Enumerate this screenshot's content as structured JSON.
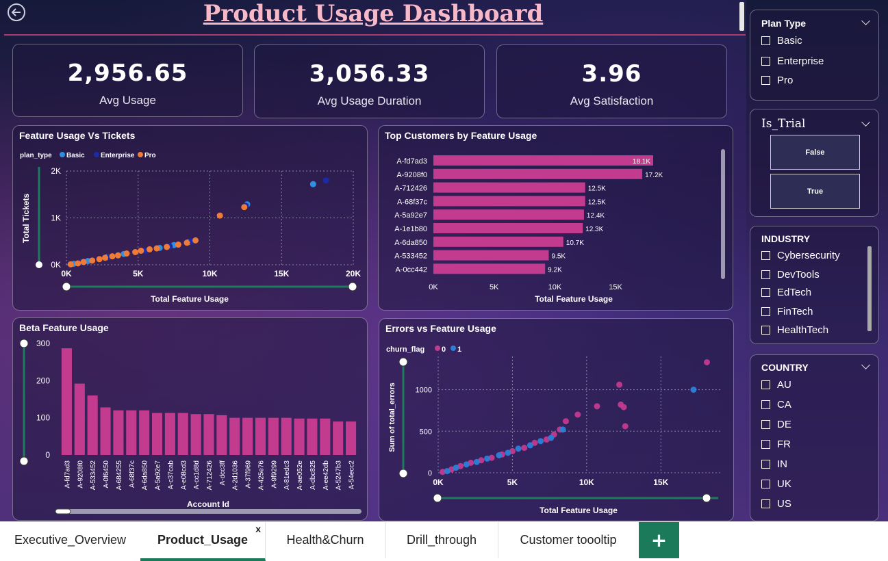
{
  "title": "Product Usage Dashboard",
  "kpis": [
    {
      "value": "2,956.65",
      "label": "Avg Usage"
    },
    {
      "value": "3,056.33",
      "label": "Avg Usage Duration"
    },
    {
      "value": "3.96",
      "label": "Avg Satisfaction"
    }
  ],
  "colors": {
    "basic": "#2d8ee6",
    "enterprise": "#1d2aa8",
    "pro": "#ee7b38",
    "bar": "#c23b8f",
    "churn0": "#c23b8f",
    "churn1": "#2d7fd8"
  },
  "chart_data": [
    {
      "type": "scatter",
      "title": "Feature Usage Vs Tickets",
      "legend_title": "plan_type",
      "legend": [
        "Basic",
        "Enterprise",
        "Pro"
      ],
      "xlabel": "Total Feature Usage",
      "ylabel": "Total Tickets",
      "x_ticks": [
        "0K",
        "5K",
        "10K",
        "15K",
        "20K"
      ],
      "y_ticks": [
        "0K",
        "1K",
        "2K"
      ],
      "xlim": [
        0,
        20000
      ],
      "ylim": [
        0,
        2000
      ],
      "series": [
        {
          "name": "Basic",
          "points": [
            [
              500,
              20
            ],
            [
              1500,
              80
            ],
            [
              2800,
              160
            ],
            [
              4000,
              230
            ],
            [
              6500,
              360
            ],
            [
              7500,
              420
            ],
            [
              8500,
              480
            ],
            [
              12600,
              1290
            ],
            [
              17200,
              1720
            ]
          ]
        },
        {
          "name": "Enterprise",
          "points": [
            [
              1000,
              50
            ],
            [
              3000,
              170
            ],
            [
              5500,
              300
            ],
            [
              7200,
              390
            ],
            [
              8700,
              500
            ],
            [
              12500,
              1260
            ],
            [
              18100,
              1800
            ]
          ]
        },
        {
          "name": "Pro",
          "points": [
            [
              300,
              10
            ],
            [
              800,
              30
            ],
            [
              1200,
              60
            ],
            [
              1800,
              90
            ],
            [
              2300,
              120
            ],
            [
              2700,
              150
            ],
            [
              3200,
              180
            ],
            [
              3600,
              200
            ],
            [
              4200,
              240
            ],
            [
              4800,
              270
            ],
            [
              5200,
              300
            ],
            [
              5800,
              330
            ],
            [
              6300,
              350
            ],
            [
              7000,
              380
            ],
            [
              7800,
              430
            ],
            [
              8400,
              470
            ],
            [
              9000,
              520
            ],
            [
              10700,
              1050
            ],
            [
              12400,
              1230
            ]
          ]
        }
      ]
    },
    {
      "type": "bar",
      "title": "Top Customers by Feature Usage",
      "orientation": "horizontal",
      "xlabel": "Total Feature Usage",
      "x_ticks": [
        "0K",
        "5K",
        "10K",
        "15K"
      ],
      "xlim": [
        0,
        19000
      ],
      "categories": [
        "A-fd7ad3",
        "A-9208f0",
        "A-712426",
        "A-68f37c",
        "A-5a92e7",
        "A-1e1b80",
        "A-6da850",
        "A-533452",
        "A-0cc442"
      ],
      "values": [
        18100,
        17200,
        12500,
        12500,
        12400,
        12300,
        10700,
        9500,
        9200
      ],
      "value_labels": [
        "18.1K",
        "17.2K",
        "12.5K",
        "12.5K",
        "12.4K",
        "12.3K",
        "10.7K",
        "9.5K",
        "9.2K"
      ]
    },
    {
      "type": "bar",
      "title": "Beta Feature Usage",
      "xlabel": "Account Id",
      "y_ticks": [
        "300",
        "200",
        "100",
        "0"
      ],
      "ylim": [
        0,
        300
      ],
      "categories": [
        "A-fd7ad3",
        "A-9208f0",
        "A-533452",
        "A-0f6450",
        "A-684255",
        "A-68f37c",
        "A-6da850",
        "A-5a92e7",
        "A-c37cab",
        "A-e08cd3",
        "A-cc1d8d",
        "A-712426",
        "A-dcc3ff",
        "A-2d1036",
        "A-37f969",
        "A-425e76",
        "A-9f9299",
        "A-81edc3",
        "A-ae052e",
        "A-dbc825",
        "A-ee42db",
        "A-5247b3",
        "A-54ecc2"
      ],
      "values": [
        287,
        192,
        160,
        128,
        120,
        120,
        120,
        113,
        113,
        113,
        110,
        110,
        107,
        100,
        100,
        100,
        100,
        100,
        98,
        98,
        98,
        90,
        90
      ]
    },
    {
      "type": "scatter",
      "title": "Errors vs Feature Usage",
      "legend_title": "churn_flag",
      "legend": [
        "0",
        "1"
      ],
      "xlabel": "Total Feature Usage",
      "ylabel": "Sum of total_errors",
      "x_ticks": [
        "0K",
        "5K",
        "10K",
        "15K"
      ],
      "y_ticks": [
        "1000",
        "500",
        "0"
      ],
      "xlim": [
        0,
        19000
      ],
      "ylim": [
        0,
        1400
      ],
      "series": [
        {
          "name": "0",
          "points": [
            [
              300,
              10
            ],
            [
              900,
              40
            ],
            [
              1500,
              80
            ],
            [
              2200,
              120
            ],
            [
              2900,
              150
            ],
            [
              3600,
              180
            ],
            [
              4300,
              220
            ],
            [
              5000,
              260
            ],
            [
              5800,
              300
            ],
            [
              6500,
              360
            ],
            [
              7300,
              400
            ],
            [
              7800,
              460
            ],
            [
              8200,
              520
            ],
            [
              8600,
              620
            ],
            [
              9400,
              700
            ],
            [
              10700,
              800
            ],
            [
              12200,
              1060
            ],
            [
              12300,
              820
            ],
            [
              12500,
              790
            ],
            [
              12600,
              560
            ],
            [
              18100,
              1330
            ]
          ]
        },
        {
          "name": "1",
          "points": [
            [
              600,
              20
            ],
            [
              1200,
              60
            ],
            [
              1900,
              100
            ],
            [
              2600,
              130
            ],
            [
              3300,
              170
            ],
            [
              4100,
              210
            ],
            [
              4700,
              240
            ],
            [
              5400,
              290
            ],
            [
              6200,
              330
            ],
            [
              6900,
              380
            ],
            [
              7600,
              420
            ],
            [
              8400,
              520
            ],
            [
              17200,
              1000
            ]
          ]
        }
      ]
    }
  ],
  "slicers": {
    "plan_type": {
      "title": "Plan Type",
      "options": [
        "Basic",
        "Enterprise",
        "Pro"
      ]
    },
    "is_trial": {
      "title": "Is_Trial",
      "options": [
        "False",
        "True"
      ]
    },
    "industry": {
      "title": "INDUSTRY",
      "options": [
        "Cybersecurity",
        "DevTools",
        "EdTech",
        "FinTech",
        "HealthTech"
      ]
    },
    "country": {
      "title": "COUNTRY",
      "options": [
        "AU",
        "CA",
        "DE",
        "FR",
        "IN",
        "UK",
        "US"
      ]
    }
  },
  "tabs": [
    {
      "label": "Executive_Overview"
    },
    {
      "label": "Product_Usage",
      "active": true,
      "close": "x"
    },
    {
      "label": "Health&Churn"
    },
    {
      "label": "Drill_through"
    },
    {
      "label": "Customer toooltip"
    }
  ],
  "add_tab": "+"
}
